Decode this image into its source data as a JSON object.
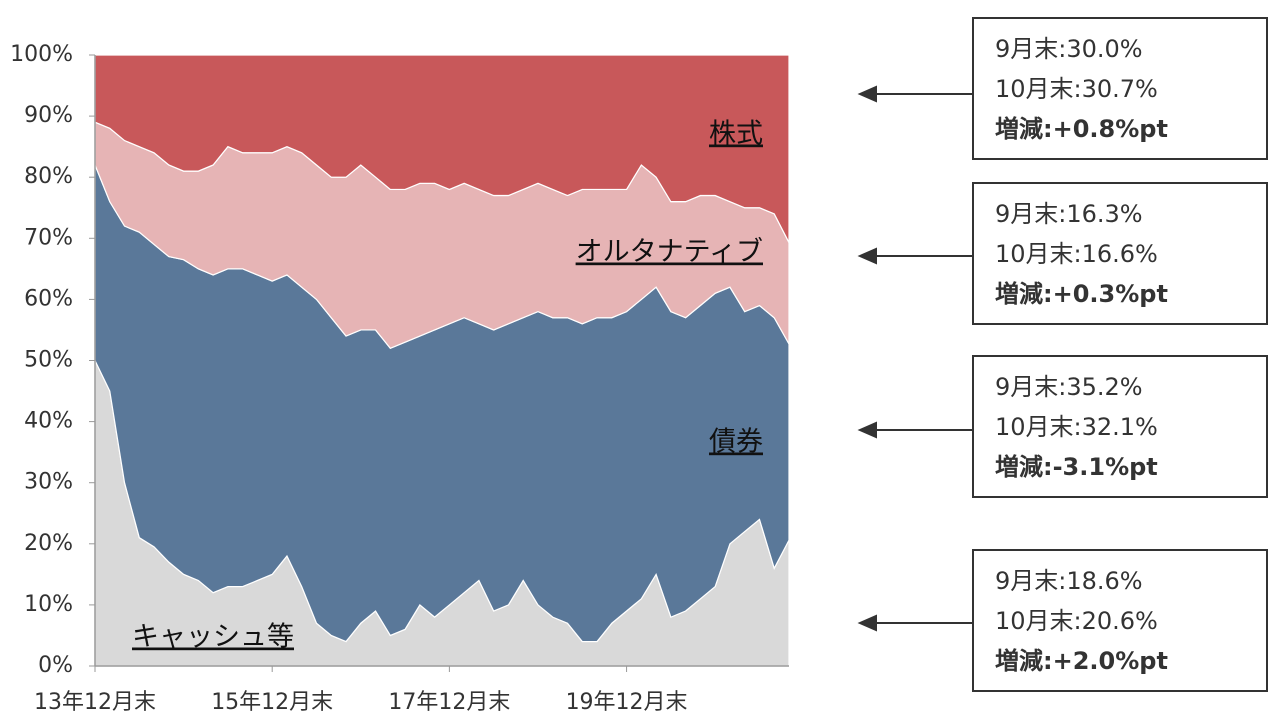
{
  "chart_data": {
    "type": "stacked-area",
    "categories": [
      "13年12月末",
      null,
      null,
      null,
      null,
      null,
      null,
      null,
      null,
      null,
      null,
      null,
      "15年12月末",
      null,
      null,
      null,
      null,
      null,
      null,
      null,
      null,
      null,
      null,
      null,
      "17年12月末",
      null,
      null,
      null,
      null,
      null,
      null,
      null,
      null,
      null,
      null,
      null,
      "19年12月末",
      null,
      null,
      null,
      null,
      null,
      null,
      null,
      null,
      null,
      null,
      null
    ],
    "series": [
      {
        "name": "キャッシュ等",
        "color": "#d9d9d9",
        "note": [
          "9月末:18.6%",
          "10月末:20.6%",
          "増減:+2.0%pt"
        ],
        "values": [
          50,
          45,
          30,
          21,
          19.5,
          17,
          15,
          14,
          12,
          13,
          13,
          14,
          15,
          18,
          13,
          7,
          5,
          4,
          7,
          9,
          5,
          6,
          10,
          8,
          10,
          12,
          14,
          9,
          10,
          14,
          10,
          8,
          7,
          4,
          4,
          7,
          9,
          11,
          15,
          8,
          9,
          11,
          13,
          20,
          22,
          24,
          16,
          20.6
        ]
      },
      {
        "name": "債券",
        "color": "#5a7899",
        "note": [
          "9月末:35.2%",
          "10月末:32.1%",
          "増減:-3.1%pt"
        ],
        "values": [
          32,
          31,
          42,
          50,
          49.5,
          50,
          51.5,
          51,
          52,
          52,
          52,
          50,
          48,
          46,
          49,
          53,
          52,
          50,
          48,
          46,
          47,
          47,
          44,
          47,
          46,
          45,
          42,
          46,
          46,
          43,
          48,
          49,
          50,
          52,
          53,
          50,
          49,
          49,
          47,
          50,
          48,
          48,
          48,
          42,
          36,
          35,
          41,
          32.1
        ]
      },
      {
        "name": "オルタナティブ",
        "color": "#e6b4b5",
        "note": [
          "9月末:16.3%",
          "10月末:16.6%",
          "増減:+0.3%pt"
        ],
        "values": [
          7,
          12,
          14,
          14,
          15,
          15,
          14.5,
          16,
          18,
          20,
          19,
          20,
          21,
          21,
          22,
          22,
          23,
          26,
          27,
          25,
          26,
          25,
          25,
          24,
          22,
          22,
          22,
          22,
          21,
          21,
          21,
          21,
          20,
          22,
          21,
          21,
          20,
          22,
          18,
          18,
          19,
          18,
          16,
          14,
          17,
          16,
          17,
          16.6
        ]
      },
      {
        "name": "株式",
        "color": "#c8585a",
        "note": [
          "9月末:30.0%",
          "10月末:30.7%",
          "増減:+0.8%pt"
        ],
        "values": [
          11,
          12,
          14,
          15,
          16,
          18,
          19,
          19,
          18,
          15,
          16,
          16,
          16,
          15,
          16,
          18,
          20,
          20,
          18,
          20,
          22,
          22,
          21,
          21,
          22,
          21,
          22,
          23,
          23,
          22,
          21,
          22,
          23,
          22,
          22,
          22,
          22,
          18,
          20,
          24,
          24,
          23,
          23,
          24,
          25,
          25,
          26,
          30.7
        ]
      }
    ],
    "ylim": [
      0,
      100
    ],
    "yticks": [
      {
        "value": 0,
        "label": "0%"
      },
      {
        "value": 10,
        "label": "10%"
      },
      {
        "value": 20,
        "label": "20%"
      },
      {
        "value": 30,
        "label": "30%"
      },
      {
        "value": 40,
        "label": "40%"
      },
      {
        "value": 50,
        "label": "50%"
      },
      {
        "value": 60,
        "label": "60%"
      },
      {
        "value": 70,
        "label": "70%"
      },
      {
        "value": 80,
        "label": "80%"
      },
      {
        "value": 90,
        "label": "90%"
      },
      {
        "value": 100,
        "label": "100%"
      }
    ]
  }
}
